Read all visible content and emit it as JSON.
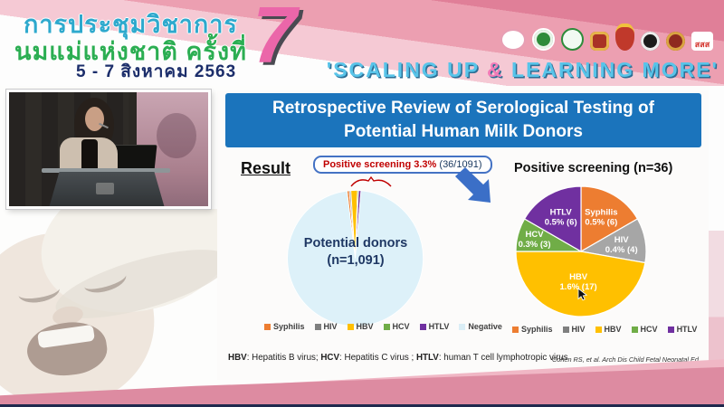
{
  "banner": {
    "title_line1": "การประชุมวิชาการ",
    "title_line2": "นมแม่แห่งชาติ ครั้งที่",
    "date_line": "5 - 7 สิงหาคม 2563",
    "edition_number": "7",
    "slogan_pre": "'SCALING UP ",
    "slogan_amp": "&",
    "slogan_post": " LEARNING MORE'"
  },
  "logos": [
    {
      "name": "breastfeeding-foundation-logo"
    },
    {
      "name": "green-health-logo"
    },
    {
      "name": "public-health-logo"
    },
    {
      "name": "temple-emblem-logo"
    },
    {
      "name": "royal-crown-emblem-logo"
    },
    {
      "name": "black-white-society-logo"
    },
    {
      "name": "dark-red-gold-logo"
    },
    {
      "name": "thai-health-promotion-logo",
      "text": "สสส"
    }
  ],
  "slide": {
    "title": "Retrospective Review of Serological Testing of Potential Human Milk Donors",
    "result_label": "Result",
    "callout_highlight": "Positive screening 3.3%",
    "callout_detail": "(36/1091)",
    "left_label1": "Potential donors",
    "left_label2": "(n=1,091)",
    "fn": [
      "HBV",
      ": Hepatitis B virus; ",
      "HCV",
      ": Hepatitis C virus ; ",
      "HTLV",
      ": human T cell lymphotropic virus"
    ],
    "citation": "Cohen RS, et al. Arch Dis Child Fetal Neonatal Ed. 2010;95:F118-F120."
  },
  "chart_data": [
    {
      "type": "pie",
      "title": "Potential donors (n=1,091)",
      "categories": [
        "Syphilis",
        "HIV",
        "HBV",
        "HCV",
        "HTLV",
        "Negative"
      ],
      "values": [
        6,
        4,
        17,
        3,
        6,
        1055
      ],
      "colors": [
        "#ED7D31",
        "#A6A6A6",
        "#FFC000",
        "#70AD47",
        "#7030A0",
        "#DDF1F9"
      ],
      "annotation": "Positive screening 3.3% (36/1091)",
      "legend_position": "bottom"
    },
    {
      "type": "pie",
      "title": "Positive screening (n=36)",
      "categories": [
        "Syphilis",
        "HIV",
        "HBV",
        "HCV",
        "HTLV"
      ],
      "values": [
        6,
        4,
        17,
        3,
        6
      ],
      "percent_labels": [
        "0.5% (6)",
        "0.4% (4)",
        "1.6% (17)",
        "0.3% (3)",
        "0.5% (6)"
      ],
      "colors": [
        "#ED7D31",
        "#A6A6A6",
        "#FFC000",
        "#70AD47",
        "#7030A0"
      ],
      "legend_position": "bottom"
    }
  ],
  "legends": {
    "left": [
      {
        "label": "Syphilis",
        "color": "#ED7D31"
      },
      {
        "label": "HIV",
        "color": "#7F7F7F"
      },
      {
        "label": "HBV",
        "color": "#FFC000"
      },
      {
        "label": "HCV",
        "color": "#70AD47"
      },
      {
        "label": "HTLV",
        "color": "#7030A0"
      },
      {
        "label": "Negative",
        "color": "#DAEEF6"
      }
    ],
    "right": [
      {
        "label": "Syphilis",
        "color": "#ED7D31"
      },
      {
        "label": "HIV",
        "color": "#7F7F7F"
      },
      {
        "label": "HBV",
        "color": "#FFC000"
      },
      {
        "label": "HCV",
        "color": "#70AD47"
      },
      {
        "label": "HTLV",
        "color": "#7030A0"
      }
    ]
  },
  "colors": {
    "title_bar": "#1B74BC",
    "callout_text": "#C00000",
    "arrow": "#3B6FC7",
    "banner_pink": "#E07F98",
    "bottom_band": "#DD8BA1",
    "slogan_blue": "#58C4E9",
    "slogan_amp_pink": "#F27BB8"
  }
}
